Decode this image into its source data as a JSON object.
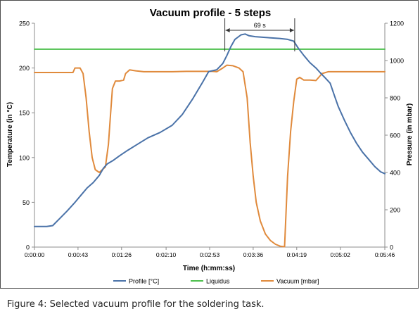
{
  "chart_data": {
    "type": "line",
    "title": "Vacuum profile  - 5 steps",
    "xlabel": "Time (h:mm:ss)",
    "ylabel": "Temperature (in °C)",
    "y2label": "Pressure (in mbar)",
    "xlim": [
      0,
      346
    ],
    "ylim": [
      0,
      250
    ],
    "y2lim": [
      0,
      1200
    ],
    "x_tick_values": [
      0,
      43,
      86,
      130,
      173,
      216,
      259,
      302,
      346
    ],
    "x_tick_labels": [
      "0:00:00",
      "0:00:43",
      "0:01:26",
      "0:02:10",
      "0:02:53",
      "0:03:36",
      "0:04:19",
      "0:05:02",
      "0:05:46"
    ],
    "y_ticks": [
      0,
      50,
      100,
      150,
      200,
      250
    ],
    "y2_ticks": [
      0,
      200,
      400,
      600,
      800,
      1000,
      1200
    ],
    "grid": false,
    "legend_position": "bottom",
    "series": [
      {
        "name": "Profile [°C]",
        "axis": "left",
        "color": "#4a72a8",
        "points": [
          [
            0,
            23
          ],
          [
            12,
            23
          ],
          [
            18,
            24
          ],
          [
            25,
            32
          ],
          [
            32,
            40
          ],
          [
            40,
            50
          ],
          [
            46,
            58
          ],
          [
            52,
            66
          ],
          [
            58,
            72
          ],
          [
            64,
            80
          ],
          [
            68,
            88
          ],
          [
            72,
            93
          ],
          [
            78,
            97
          ],
          [
            84,
            102
          ],
          [
            92,
            108
          ],
          [
            102,
            115
          ],
          [
            112,
            122
          ],
          [
            124,
            128
          ],
          [
            136,
            136
          ],
          [
            146,
            148
          ],
          [
            156,
            165
          ],
          [
            166,
            184
          ],
          [
            172,
            196
          ],
          [
            180,
            198
          ],
          [
            186,
            205
          ],
          [
            190,
            214
          ],
          [
            194,
            224
          ],
          [
            198,
            232
          ],
          [
            204,
            237
          ],
          [
            208,
            238
          ],
          [
            212,
            236
          ],
          [
            218,
            235
          ],
          [
            230,
            234
          ],
          [
            242,
            233
          ],
          [
            250,
            232
          ],
          [
            256,
            230
          ],
          [
            260,
            223
          ],
          [
            266,
            214
          ],
          [
            272,
            206
          ],
          [
            278,
            200
          ],
          [
            282,
            195
          ],
          [
            288,
            188
          ],
          [
            292,
            183
          ],
          [
            296,
            170
          ],
          [
            300,
            157
          ],
          [
            306,
            142
          ],
          [
            312,
            128
          ],
          [
            318,
            116
          ],
          [
            324,
            106
          ],
          [
            330,
            98
          ],
          [
            336,
            90
          ],
          [
            342,
            84
          ],
          [
            346,
            82
          ]
        ]
      },
      {
        "name": "Liquidus",
        "axis": "left",
        "color": "#4cbf4c",
        "points": [
          [
            0,
            221
          ],
          [
            346,
            221
          ]
        ]
      },
      {
        "name": "Vacuum [mbar]",
        "axis": "right",
        "color": "#e08a3c",
        "points": [
          [
            0,
            936
          ],
          [
            38,
            936
          ],
          [
            40,
            960
          ],
          [
            45,
            960
          ],
          [
            48,
            930
          ],
          [
            51,
            800
          ],
          [
            54,
            620
          ],
          [
            57,
            480
          ],
          [
            60,
            415
          ],
          [
            64,
            400
          ],
          [
            68,
            420
          ],
          [
            70,
            430
          ],
          [
            73,
            550
          ],
          [
            75,
            700
          ],
          [
            77,
            850
          ],
          [
            80,
            890
          ],
          [
            84,
            890
          ],
          [
            88,
            895
          ],
          [
            90,
            930
          ],
          [
            94,
            950
          ],
          [
            100,
            945
          ],
          [
            108,
            940
          ],
          [
            120,
            940
          ],
          [
            136,
            940
          ],
          [
            150,
            942
          ],
          [
            166,
            942
          ],
          [
            176,
            942
          ],
          [
            180,
            940
          ],
          [
            186,
            960
          ],
          [
            190,
            975
          ],
          [
            196,
            972
          ],
          [
            202,
            960
          ],
          [
            206,
            940
          ],
          [
            210,
            800
          ],
          [
            213,
            560
          ],
          [
            216,
            380
          ],
          [
            219,
            240
          ],
          [
            223,
            140
          ],
          [
            228,
            70
          ],
          [
            233,
            35
          ],
          [
            238,
            15
          ],
          [
            243,
            4
          ],
          [
            247,
            2
          ],
          [
            250,
            380
          ],
          [
            253,
            620
          ],
          [
            256,
            780
          ],
          [
            259,
            900
          ],
          [
            262,
            910
          ],
          [
            266,
            895
          ],
          [
            272,
            895
          ],
          [
            278,
            893
          ],
          [
            284,
            930
          ],
          [
            290,
            940
          ],
          [
            300,
            940
          ],
          [
            320,
            940
          ],
          [
            346,
            940
          ]
        ]
      }
    ],
    "annotations": [
      {
        "text": "69 s",
        "x_start": 188,
        "x_end": 257
      }
    ]
  },
  "caption": "Figure 4: Selected vacuum profile for the soldering task."
}
